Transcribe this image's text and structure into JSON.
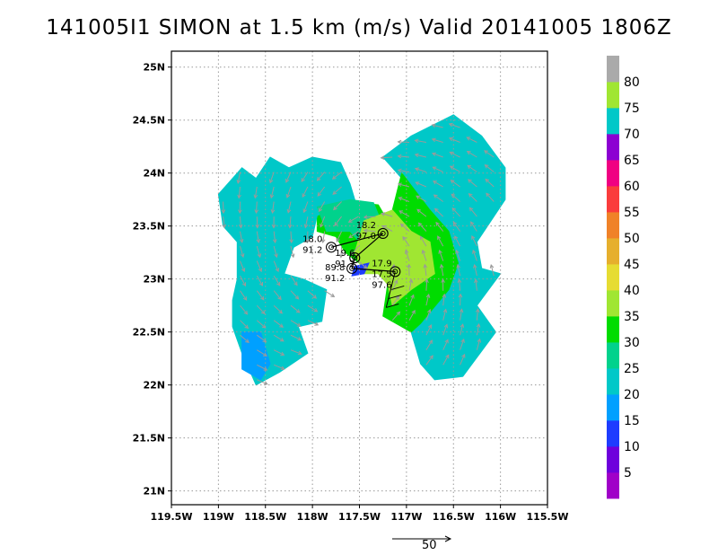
{
  "title": "141005I1 SIMON at 1.5 km (m/s) Valid 20141005  1806Z",
  "chart_data": {
    "type": "heatmap",
    "title": "141005I1 SIMON at 1.5 km (m/s) Valid 20141005  1806Z",
    "xlim": [
      -119.5,
      -115.5
    ],
    "ylim": [
      20.87,
      25.15
    ],
    "x_ticks": [
      "119.5W",
      "119W",
      "118.5W",
      "118W",
      "117.5W",
      "117W",
      "116.5W",
      "116W",
      "115.5W"
    ],
    "x_tick_values": [
      -119.5,
      -119.0,
      -118.5,
      -118.0,
      -117.5,
      -117.0,
      -116.5,
      -116.0,
      -115.5
    ],
    "y_ticks": [
      "21N",
      "21.5N",
      "22N",
      "22.5N",
      "23N",
      "23.5N",
      "24N",
      "24.5N",
      "25N"
    ],
    "y_tick_values": [
      21.0,
      21.5,
      22.0,
      22.5,
      23.0,
      23.5,
      24.0,
      24.5,
      25.0
    ],
    "grid": true,
    "colorbar": {
      "labels": [
        "5",
        "10",
        "15",
        "20",
        "25",
        "30",
        "35",
        "40",
        "45",
        "50",
        "55",
        "60",
        "65",
        "70",
        "75",
        "80"
      ],
      "colors": [
        "#a000c8",
        "#6e00dc",
        "#1e3cff",
        "#00a0ff",
        "#00c8c8",
        "#00d28c",
        "#00dc00",
        "#a0e632",
        "#e6dc32",
        "#e6af2d",
        "#f08228",
        "#fa3c3c",
        "#f00082",
        "#8c00d2",
        "#00c8c8",
        "#a0e632",
        "#aaaaaa"
      ]
    },
    "wind_regions": [
      {
        "speed_class": "20-25",
        "color": "#00c8c8",
        "polygon": [
          [
            -117.25,
            24.15
          ],
          [
            -117.05,
            23.95
          ],
          [
            -116.8,
            23.6
          ],
          [
            -116.6,
            23.45
          ],
          [
            -116.5,
            23.1
          ],
          [
            -116.6,
            22.85
          ],
          [
            -116.95,
            22.5
          ],
          [
            -116.85,
            22.2
          ],
          [
            -116.7,
            22.05
          ],
          [
            -116.4,
            22.08
          ],
          [
            -116.05,
            22.5
          ],
          [
            -116.25,
            22.75
          ],
          [
            -116.0,
            23.05
          ],
          [
            -116.2,
            23.1
          ],
          [
            -116.25,
            23.35
          ],
          [
            -115.95,
            23.75
          ],
          [
            -115.95,
            24.05
          ],
          [
            -116.2,
            24.35
          ],
          [
            -116.5,
            24.55
          ],
          [
            -116.95,
            24.35
          ]
        ]
      },
      {
        "speed_class": "30-35",
        "color": "#00dc00",
        "polygon": [
          [
            -117.05,
            24.0
          ],
          [
            -116.75,
            23.65
          ],
          [
            -116.55,
            23.45
          ],
          [
            -116.45,
            23.15
          ],
          [
            -116.55,
            22.9
          ],
          [
            -116.85,
            22.58
          ],
          [
            -116.95,
            22.5
          ],
          [
            -117.25,
            22.65
          ],
          [
            -117.2,
            22.95
          ],
          [
            -117.05,
            23.2
          ],
          [
            -117.2,
            23.55
          ],
          [
            -117.3,
            23.7
          ],
          [
            -117.5,
            23.72
          ],
          [
            -117.75,
            23.66
          ],
          [
            -117.95,
            23.6
          ],
          [
            -117.95,
            23.45
          ],
          [
            -117.75,
            23.4
          ],
          [
            -117.65,
            23.25
          ],
          [
            -117.5,
            23.15
          ],
          [
            -117.15,
            23.65
          ]
        ]
      },
      {
        "speed_class": "20-25",
        "color": "#00c8c8",
        "polygon": [
          [
            -118.25,
            24.05
          ],
          [
            -118.0,
            24.15
          ],
          [
            -117.7,
            24.1
          ],
          [
            -117.6,
            23.9
          ],
          [
            -117.55,
            23.75
          ],
          [
            -117.95,
            23.6
          ],
          [
            -118.0,
            23.4
          ],
          [
            -118.2,
            23.3
          ],
          [
            -118.3,
            23.05
          ],
          [
            -118.1,
            23.0
          ],
          [
            -117.85,
            22.9
          ],
          [
            -117.9,
            22.6
          ],
          [
            -118.15,
            22.55
          ],
          [
            -118.05,
            22.3
          ],
          [
            -118.35,
            22.12
          ],
          [
            -118.6,
            22.0
          ],
          [
            -118.75,
            22.3
          ],
          [
            -118.85,
            22.55
          ],
          [
            -118.85,
            22.8
          ],
          [
            -118.8,
            23.0
          ],
          [
            -118.8,
            23.35
          ],
          [
            -118.95,
            23.5
          ],
          [
            -119.0,
            23.8
          ],
          [
            -118.75,
            24.05
          ],
          [
            -118.6,
            23.95
          ],
          [
            -118.45,
            24.15
          ]
        ]
      },
      {
        "speed_class": "15-20",
        "color": "#00a0ff",
        "polygon": [
          [
            -118.55,
            22.05
          ],
          [
            -118.75,
            22.15
          ],
          [
            -118.75,
            22.5
          ],
          [
            -118.55,
            22.5
          ],
          [
            -118.45,
            22.2
          ]
        ]
      },
      {
        "speed_class": "25-30",
        "color": "#00d28c",
        "polygon": [
          [
            -117.95,
            23.68
          ],
          [
            -117.6,
            23.75
          ],
          [
            -117.35,
            23.72
          ],
          [
            -117.25,
            23.5
          ],
          [
            -117.45,
            23.3
          ],
          [
            -117.6,
            23.45
          ],
          [
            -117.85,
            23.45
          ]
        ]
      },
      {
        "speed_class": "35-40",
        "color": "#a0e632",
        "polygon": [
          [
            -117.45,
            23.55
          ],
          [
            -117.15,
            23.65
          ],
          [
            -116.95,
            23.45
          ],
          [
            -116.75,
            23.35
          ],
          [
            -116.7,
            23.05
          ],
          [
            -116.95,
            22.9
          ],
          [
            -117.15,
            22.75
          ],
          [
            -117.2,
            22.95
          ],
          [
            -117.3,
            23.05
          ],
          [
            -117.45,
            23.05
          ],
          [
            -117.55,
            23.25
          ]
        ]
      },
      {
        "speed_class": "10-15",
        "color": "#1e3cff",
        "polygon": [
          [
            -117.58,
            23.03
          ],
          [
            -117.45,
            23.05
          ],
          [
            -117.4,
            23.15
          ],
          [
            -117.55,
            23.12
          ]
        ]
      }
    ],
    "track": [
      {
        "lat": 23.3,
        "lon": -117.8,
        "labels": [
          "18.0",
          "91.2"
        ]
      },
      {
        "lat": 23.43,
        "lon": -117.25,
        "labels": [
          "18.2",
          "97.0"
        ]
      },
      {
        "lat": 23.2,
        "lon": -117.55,
        "labels": [
          "19.6",
          "91.2"
        ]
      },
      {
        "lat": 23.1,
        "lon": -117.58,
        "labels": [
          "89.8",
          "91.2"
        ]
      },
      {
        "lat": 23.07,
        "lon": -117.12,
        "labels": [
          "17.9",
          "17.5",
          "97.6"
        ]
      }
    ],
    "reference_vector": {
      "label": "50",
      "speed": 50
    }
  }
}
